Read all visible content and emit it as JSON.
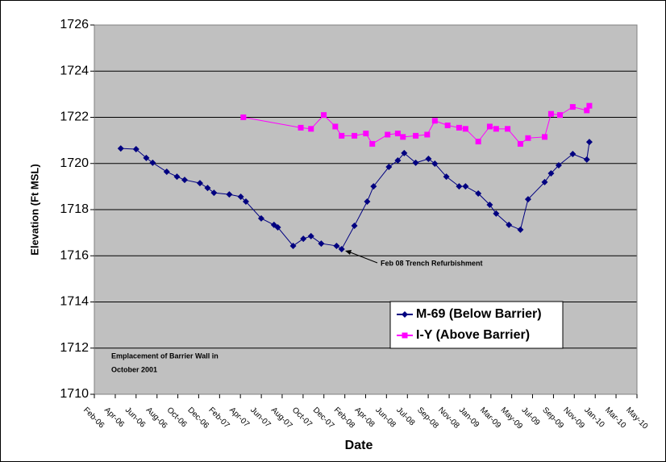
{
  "chart_data": {
    "type": "line",
    "xlabel": "Date",
    "ylabel": "Elevation (Ft MSL)",
    "xlim": [
      2006.083,
      2010.333
    ],
    "ylim": [
      1710,
      1726
    ],
    "xticks": [
      {
        "value": 2006.083,
        "label": "Feb-06"
      },
      {
        "value": 2006.247,
        "label": "Apr-06"
      },
      {
        "value": 2006.41,
        "label": "Jun-06"
      },
      {
        "value": 2006.574,
        "label": "Aug-06"
      },
      {
        "value": 2006.737,
        "label": "Oct-06"
      },
      {
        "value": 2006.9,
        "label": "Dec-06"
      },
      {
        "value": 2007.064,
        "label": "Feb-07"
      },
      {
        "value": 2007.227,
        "label": "Apr-07"
      },
      {
        "value": 2007.391,
        "label": "Jun-07"
      },
      {
        "value": 2007.554,
        "label": "Aug-07"
      },
      {
        "value": 2007.718,
        "label": "Oct-07"
      },
      {
        "value": 2007.881,
        "label": "Dec-07"
      },
      {
        "value": 2008.045,
        "label": "Feb-08"
      },
      {
        "value": 2008.208,
        "label": "Apr-08"
      },
      {
        "value": 2008.371,
        "label": "Jun-08"
      },
      {
        "value": 2008.535,
        "label": "Jul-08"
      },
      {
        "value": 2008.698,
        "label": "Sep-08"
      },
      {
        "value": 2008.862,
        "label": "Nov-08"
      },
      {
        "value": 2009.025,
        "label": "Jan-09"
      },
      {
        "value": 2009.189,
        "label": "Mar-09"
      },
      {
        "value": 2009.352,
        "label": "May-09"
      },
      {
        "value": 2009.515,
        "label": "Jul-09"
      },
      {
        "value": 2009.679,
        "label": "Sep-09"
      },
      {
        "value": 2009.842,
        "label": "Nov-09"
      },
      {
        "value": 2010.006,
        "label": "Jan-10"
      },
      {
        "value": 2010.169,
        "label": "Mar-10"
      },
      {
        "value": 2010.333,
        "label": "May-10"
      }
    ],
    "yticks": [
      1710,
      1712,
      1714,
      1716,
      1718,
      1720,
      1722,
      1724,
      1726
    ],
    "grid": true,
    "background": "#c0c0c0",
    "series": [
      {
        "name": "M-69 (Below Barrier)",
        "color": "#000080",
        "marker": "diamond",
        "x": [
          2006.29,
          2006.41,
          2006.49,
          2006.54,
          2006.65,
          2006.73,
          2006.79,
          2006.91,
          2006.97,
          2007.02,
          2007.14,
          2007.23,
          2007.27,
          2007.39,
          2007.49,
          2007.52,
          2007.64,
          2007.72,
          2007.78,
          2007.86,
          2007.98,
          2008.02,
          2008.12,
          2008.22,
          2008.27,
          2008.39,
          2008.46,
          2008.51,
          2008.6,
          2008.7,
          2008.75,
          2008.84,
          2008.94,
          2008.99,
          2009.09,
          2009.18,
          2009.23,
          2009.33,
          2009.42,
          2009.48,
          2009.61,
          2009.66,
          2009.72,
          2009.83,
          2009.94,
          2009.96
        ],
        "values": [
          1720.65,
          1720.62,
          1720.24,
          1720.03,
          1719.64,
          1719.43,
          1719.29,
          1719.15,
          1718.94,
          1718.73,
          1718.66,
          1718.56,
          1718.35,
          1717.62,
          1717.34,
          1717.23,
          1716.43,
          1716.74,
          1716.85,
          1716.53,
          1716.43,
          1716.29,
          1717.3,
          1718.35,
          1719.01,
          1719.85,
          1720.13,
          1720.45,
          1720.03,
          1720.2,
          1719.99,
          1719.43,
          1719.01,
          1719.01,
          1718.7,
          1718.21,
          1717.83,
          1717.34,
          1717.13,
          1718.45,
          1719.19,
          1719.57,
          1719.92,
          1720.41,
          1720.17,
          1720.93
        ]
      },
      {
        "name": "I-Y (Above Barrier)",
        "color": "#ff00ff",
        "marker": "square",
        "x": [
          2007.25,
          2007.7,
          2007.78,
          2007.88,
          2007.97,
          2008.02,
          2008.12,
          2008.21,
          2008.26,
          2008.38,
          2008.46,
          2008.5,
          2008.6,
          2008.69,
          2008.75,
          2008.85,
          2008.94,
          2008.99,
          2009.09,
          2009.18,
          2009.23,
          2009.32,
          2009.42,
          2009.48,
          2009.61,
          2009.66,
          2009.73,
          2009.83,
          2009.94,
          2009.96
        ],
        "values": [
          1722.0,
          1721.55,
          1721.5,
          1722.1,
          1721.6,
          1721.2,
          1721.2,
          1721.3,
          1720.85,
          1721.25,
          1721.3,
          1721.15,
          1721.2,
          1721.25,
          1721.85,
          1721.65,
          1721.55,
          1721.5,
          1720.95,
          1721.6,
          1721.5,
          1721.5,
          1720.85,
          1721.1,
          1721.15,
          1722.15,
          1722.1,
          1722.45,
          1722.3,
          1722.5
        ]
      }
    ],
    "annotation": "Feb 08 Trench Refurbishment",
    "note_lines": [
      "Emplacement of Barrier Wall in",
      "October 2001"
    ]
  }
}
